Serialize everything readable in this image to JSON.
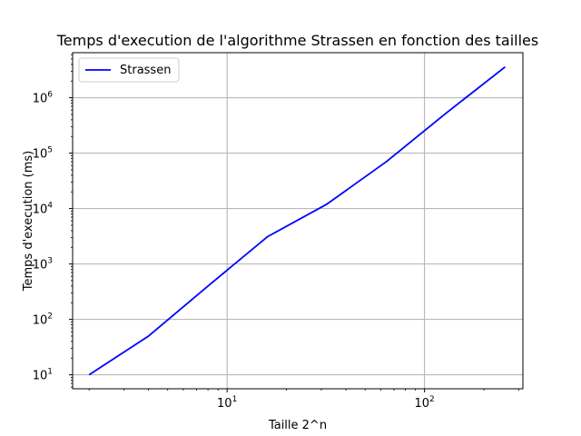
{
  "chart_data": {
    "type": "line",
    "title": "Temps d'execution de l'algorithme Strassen en fonction des tailles",
    "xlabel": "Taille 2^n",
    "ylabel": "Temps d'execution (ms)",
    "xscale": "log",
    "yscale": "log",
    "xlim": [
      1.65,
      315
    ],
    "ylim": [
      5.6,
      6500000
    ],
    "grid": true,
    "legend_position": "top-left",
    "x_ticks": [
      {
        "value": 10,
        "base": "10",
        "exp": "1"
      },
      {
        "value": 100,
        "base": "10",
        "exp": "2"
      }
    ],
    "y_ticks": [
      {
        "value": 10,
        "base": "10",
        "exp": "1"
      },
      {
        "value": 100,
        "base": "10",
        "exp": "2"
      },
      {
        "value": 1000,
        "base": "10",
        "exp": "3"
      },
      {
        "value": 10000,
        "base": "10",
        "exp": "4"
      },
      {
        "value": 100000,
        "base": "10",
        "exp": "5"
      },
      {
        "value": 1000000,
        "base": "10",
        "exp": "6"
      }
    ],
    "series": [
      {
        "name": "Strassen",
        "color": "#0000ff",
        "x": [
          2,
          4,
          8,
          16,
          32,
          64,
          128,
          256
        ],
        "y": [
          10,
          50,
          400,
          3100,
          12000,
          70000,
          520000,
          3600000
        ]
      }
    ]
  }
}
